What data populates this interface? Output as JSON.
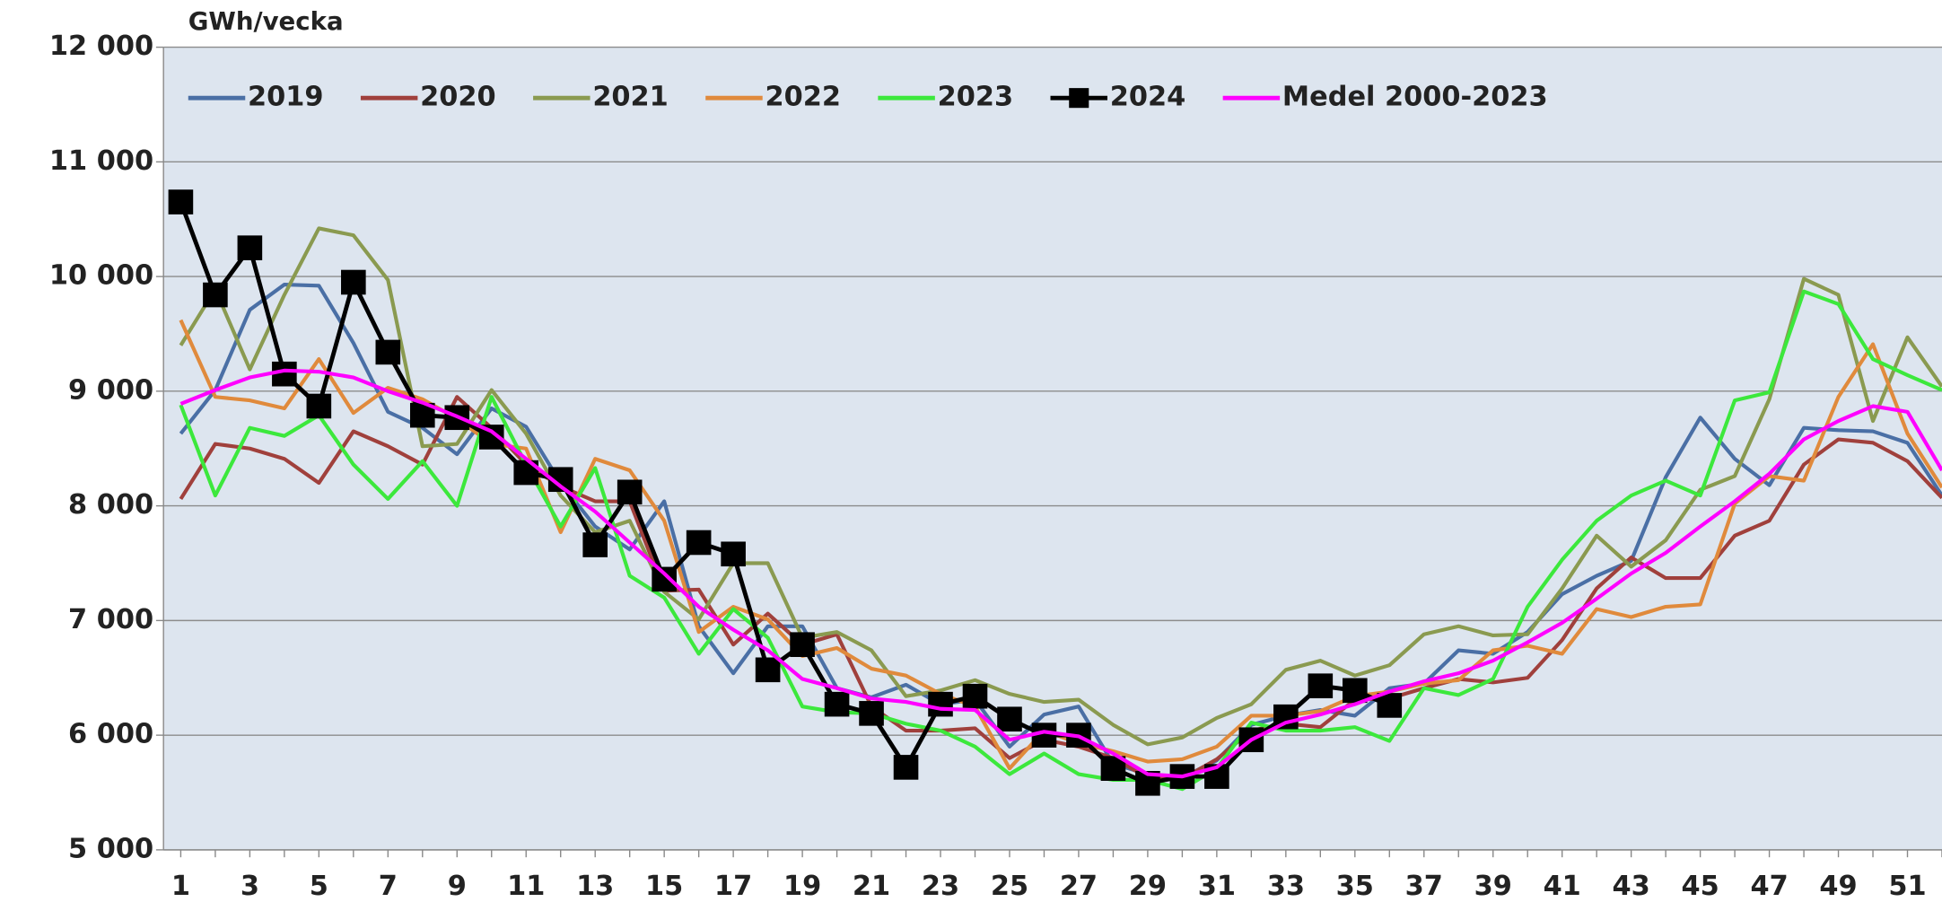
{
  "chart_data": {
    "type": "line",
    "y_label": "GWh/vecka",
    "x": [
      1,
      2,
      3,
      4,
      5,
      6,
      7,
      8,
      9,
      10,
      11,
      12,
      13,
      14,
      15,
      16,
      17,
      18,
      19,
      20,
      21,
      22,
      23,
      24,
      25,
      26,
      27,
      28,
      29,
      30,
      31,
      32,
      33,
      34,
      35,
      36,
      37,
      38,
      39,
      40,
      41,
      42,
      43,
      44,
      45,
      46,
      47,
      48,
      49,
      50,
      51,
      52
    ],
    "xlim": [
      0.5,
      52
    ],
    "xticks": [
      1,
      3,
      5,
      7,
      9,
      11,
      13,
      15,
      17,
      19,
      21,
      23,
      25,
      27,
      29,
      31,
      33,
      35,
      37,
      39,
      41,
      43,
      45,
      47,
      49,
      51
    ],
    "ylim": [
      5000,
      12000
    ],
    "yticks": [
      {
        "value": 5000,
        "label": "5 000"
      },
      {
        "value": 6000,
        "label": "6 000"
      },
      {
        "value": 7000,
        "label": "7 000"
      },
      {
        "value": 8000,
        "label": "8 000"
      },
      {
        "value": 9000,
        "label": "9 000"
      },
      {
        "value": 10000,
        "label": "10 000"
      },
      {
        "value": 11000,
        "label": "11 000"
      },
      {
        "value": 12000,
        "label": "12 000"
      }
    ],
    "grid": true,
    "legend": "top-left",
    "series": [
      {
        "name": "2019",
        "color": "#4a6fa5",
        "values": [
          8630,
          9010,
          9710,
          9930,
          9920,
          9420,
          8820,
          8680,
          8450,
          8850,
          8690,
          8200,
          7820,
          7620,
          8040,
          6950,
          6540,
          6950,
          6950,
          6410,
          6330,
          6440,
          6270,
          6310,
          5900,
          6180,
          6250,
          5750,
          5660,
          5630,
          5780,
          6090,
          6170,
          6220,
          6170,
          6410,
          6450,
          6740,
          6710,
          6900,
          7230,
          7390,
          7520,
          8250,
          8770,
          8410,
          8180,
          8680,
          8660,
          8650,
          8550,
          8090
        ]
      },
      {
        "name": "2020",
        "color": "#a0403c",
        "values": [
          8060,
          8540,
          8500,
          8410,
          8200,
          8650,
          8520,
          8360,
          8950,
          8680,
          8360,
          8170,
          8040,
          8040,
          7260,
          7270,
          6790,
          7060,
          6790,
          6880,
          6250,
          6040,
          6040,
          6060,
          5800,
          5960,
          5900,
          5800,
          5630,
          5620,
          5790,
          6040,
          6100,
          6070,
          6310,
          6320,
          6410,
          6490,
          6460,
          6500,
          6830,
          7280,
          7550,
          7370,
          7370,
          7740,
          7870,
          8360,
          8580,
          8550,
          8390,
          8070
        ]
      },
      {
        "name": "2021",
        "color": "#8a9a50",
        "values": [
          9400,
          9890,
          9190,
          9840,
          10420,
          10360,
          9970,
          8520,
          8540,
          9010,
          8630,
          8090,
          7770,
          7870,
          7250,
          7010,
          7500,
          7500,
          6850,
          6900,
          6740,
          6340,
          6390,
          6480,
          6360,
          6290,
          6310,
          6090,
          5920,
          5980,
          6150,
          6270,
          6570,
          6650,
          6520,
          6610,
          6880,
          6950,
          6870,
          6880,
          7280,
          7740,
          7470,
          7700,
          8140,
          8260,
          8930,
          9980,
          9840,
          8740,
          9470,
          9040
        ]
      },
      {
        "name": "2022",
        "color": "#e08a3c",
        "values": [
          9620,
          8950,
          8920,
          8850,
          9280,
          8810,
          9030,
          8930,
          8760,
          8540,
          8500,
          7770,
          8410,
          8310,
          7870,
          6900,
          7120,
          7010,
          6690,
          6760,
          6580,
          6520,
          6360,
          6250,
          5710,
          6040,
          5930,
          5860,
          5770,
          5790,
          5900,
          6170,
          6170,
          6210,
          6340,
          6380,
          6450,
          6480,
          6740,
          6780,
          6710,
          7100,
          7030,
          7120,
          7140,
          8020,
          8260,
          8220,
          8950,
          9410,
          8630,
          8160
        ]
      },
      {
        "name": "2023",
        "color": "#3ce83c",
        "values": [
          8880,
          8090,
          8680,
          8610,
          8790,
          8360,
          8060,
          8390,
          8000,
          8950,
          8360,
          7820,
          8330,
          7390,
          7200,
          6710,
          7100,
          6850,
          6250,
          6200,
          6190,
          6100,
          6040,
          5900,
          5660,
          5840,
          5660,
          5610,
          5610,
          5530,
          5710,
          6110,
          6040,
          6040,
          6070,
          5950,
          6410,
          6350,
          6490,
          7120,
          7530,
          7870,
          8090,
          8220,
          8090,
          8920,
          8990,
          9870,
          9760,
          9280,
          9140,
          9010
        ]
      },
      {
        "name": "2024",
        "color": "#000000",
        "marker": "square",
        "values": [
          10650,
          9840,
          10250,
          9150,
          8870,
          9950,
          9340,
          8790,
          8770,
          8600,
          8290,
          8230,
          7660,
          8120,
          7360,
          7680,
          7580,
          6570,
          6790,
          6270,
          6190,
          5720,
          6270,
          6340,
          6140,
          6000,
          6000,
          5710,
          5580,
          5640,
          5640,
          5960,
          6160,
          6430,
          6390,
          6260,
          null,
          null,
          null,
          null,
          null,
          null,
          null,
          null,
          null,
          null,
          null,
          null,
          null,
          null,
          null,
          null
        ]
      },
      {
        "name": "Medel 2000-2023",
        "color": "#ff00ff",
        "values": [
          8890,
          9010,
          9120,
          9180,
          9170,
          9120,
          9000,
          8900,
          8780,
          8650,
          8410,
          8170,
          7950,
          7680,
          7410,
          7120,
          6920,
          6740,
          6490,
          6410,
          6320,
          6290,
          6230,
          6220,
          5960,
          6030,
          5990,
          5840,
          5660,
          5640,
          5720,
          5960,
          6110,
          6180,
          6270,
          6380,
          6470,
          6540,
          6650,
          6810,
          6980,
          7190,
          7410,
          7590,
          7820,
          8040,
          8280,
          8580,
          8740,
          8870,
          8820,
          8310
        ]
      }
    ]
  }
}
